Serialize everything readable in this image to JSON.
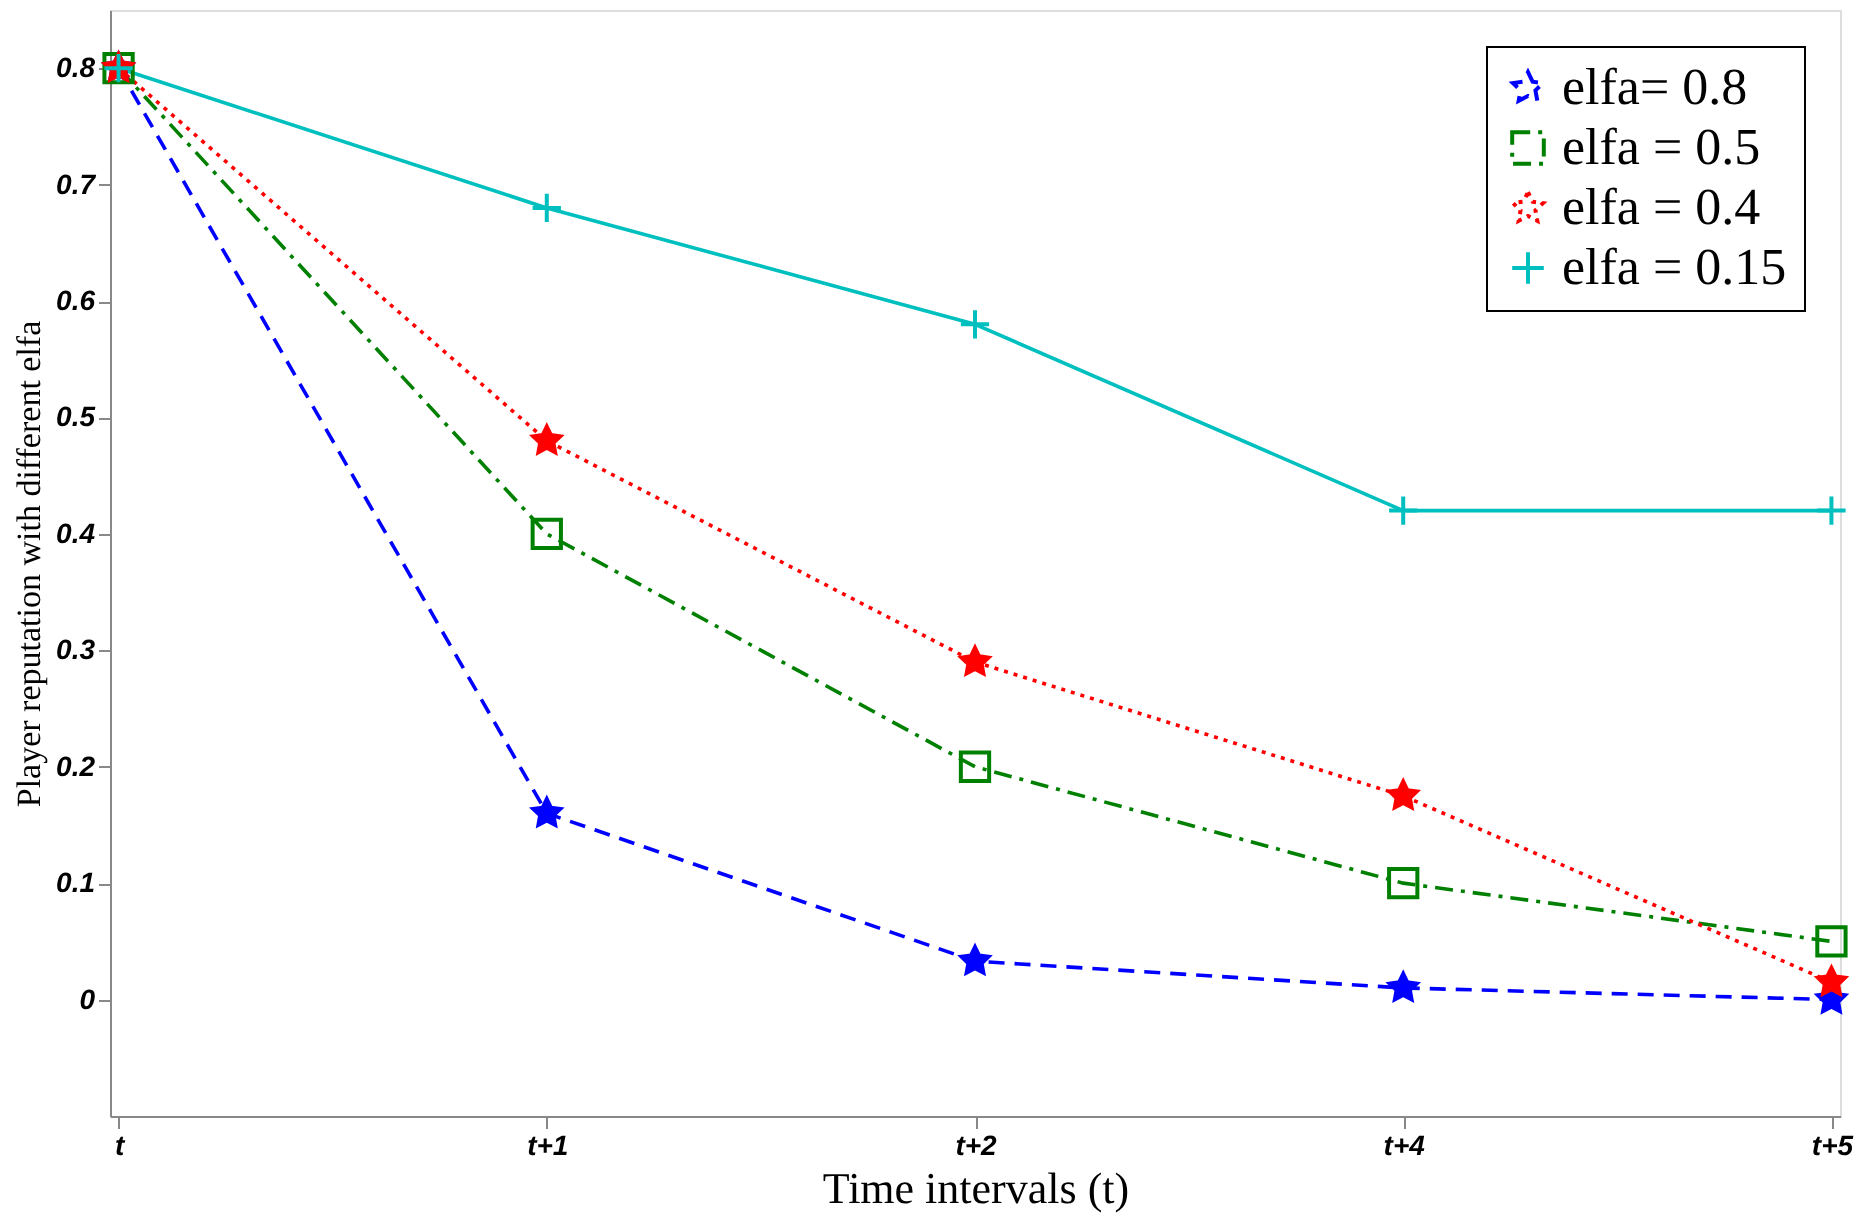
{
  "chart_data": {
    "type": "line",
    "xlabel": "Time intervals (t)",
    "ylabel": "Player reputation with different elfa",
    "categories": [
      "t",
      "t+1",
      "t+2",
      "t+4",
      "t+5"
    ],
    "series": [
      {
        "name": "elfa= 0.8",
        "color": "#0000ff",
        "values": [
          0.8,
          0.16,
          0.033,
          0.01,
          0.0
        ],
        "marker": "star",
        "line_style": "dashed"
      },
      {
        "name": "elfa = 0.5",
        "color": "#008000",
        "values": [
          0.8,
          0.4,
          0.2,
          0.1,
          0.05
        ],
        "marker": "square",
        "line_style": "dashdot"
      },
      {
        "name": "elfa = 0.4",
        "color": "#ff0000",
        "values": [
          0.8,
          0.48,
          0.29,
          0.175,
          0.015
        ],
        "marker": "star",
        "line_style": "dotted"
      },
      {
        "name": "elfa = 0.15",
        "color": "#00bfbf",
        "values": [
          0.8,
          0.68,
          0.58,
          0.42,
          0.42
        ],
        "marker": "cross",
        "line_style": "solid"
      }
    ],
    "ylim": [
      -0.1,
      0.85
    ],
    "yticks": [
      0,
      0.1,
      0.2,
      0.3,
      0.4,
      0.5,
      0.6,
      0.7,
      0.8
    ],
    "grid": false,
    "legend": "top right"
  }
}
